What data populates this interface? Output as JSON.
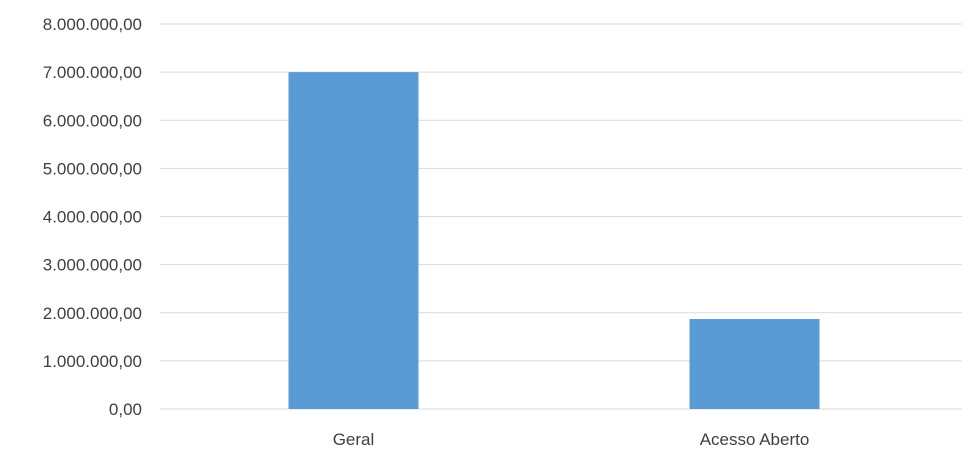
{
  "chart_data": {
    "type": "bar",
    "title": "",
    "xlabel": "",
    "ylabel": "",
    "categories": [
      "Geral",
      "Acesso Aberto"
    ],
    "values": [
      7000000,
      1870000
    ],
    "ylim": [
      0,
      8000000
    ],
    "yticks": [
      0,
      1000000,
      2000000,
      3000000,
      4000000,
      5000000,
      6000000,
      7000000,
      8000000
    ],
    "ytick_labels": [
      "0,00",
      "1.000.000,00",
      "2.000.000,00",
      "3.000.000,00",
      "4.000.000,00",
      "5.000.000,00",
      "6.000.000,00",
      "7.000.000,00",
      "8.000.000,00"
    ],
    "grid": true,
    "legend": "none",
    "colors": {
      "bar": "#5b9bd5",
      "grid": "#d9d9d9",
      "text": "#404040"
    }
  }
}
